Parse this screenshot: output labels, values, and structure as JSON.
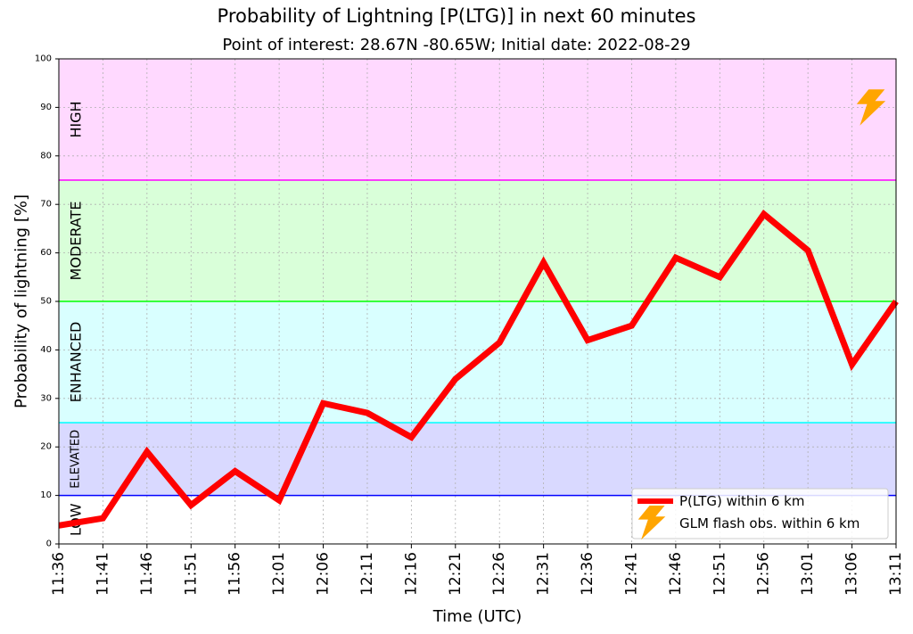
{
  "title": "Probability of Lightning [P(LTG)] in next 60 minutes",
  "subtitle": "Point of interest: 28.67N -80.65W; Initial date: 2022-08-29",
  "chart_data": {
    "type": "line",
    "title": "Probability of Lightning [P(LTG)] in next 60 minutes",
    "subtitle": "Point of interest: 28.67N -80.65W; Initial date: 2022-08-29",
    "xlabel": "Time (UTC)",
    "ylabel": "Probability of lightning [%]",
    "ylim": [
      0,
      100
    ],
    "yticks": [
      0,
      10,
      20,
      30,
      40,
      50,
      60,
      70,
      80,
      90,
      100
    ],
    "categories": [
      "11:36",
      "11:41",
      "11:46",
      "11:51",
      "11:56",
      "12:01",
      "12:06",
      "12:11",
      "12:16",
      "12:21",
      "12:26",
      "12:31",
      "12:36",
      "12:41",
      "12:46",
      "12:51",
      "12:56",
      "13:01",
      "13:06",
      "13:11"
    ],
    "series": [
      {
        "name": "P(LTG) within 6 km",
        "color": "#ff0000",
        "values": [
          3.8,
          5.3,
          19,
          8,
          15,
          9,
          29,
          27,
          22,
          34,
          41.5,
          58,
          42,
          45,
          59,
          55,
          68,
          60.5,
          37,
          50
        ]
      }
    ],
    "glm_flash_obs": {
      "name": "GLM flash obs. within 6 km",
      "color": "#ffa500",
      "icon": "lightning-bolt-icon",
      "points": [
        {
          "x": "13:11",
          "y": 90
        }
      ]
    },
    "zones": [
      {
        "label": "LOW",
        "from": 0,
        "to": 10,
        "fill": "#ffffff",
        "line": "#0000ff"
      },
      {
        "label": "ELEVATED",
        "from": 10,
        "to": 25,
        "fill": "#d9d9ff",
        "line": "#00ffff"
      },
      {
        "label": "ENHANCED",
        "from": 25,
        "to": 50,
        "fill": "#d9ffff",
        "line": "#00ff00"
      },
      {
        "label": "MODERATE",
        "from": 50,
        "to": 75,
        "fill": "#d9ffd9",
        "line": "#ff00ff"
      },
      {
        "label": "HIGH",
        "from": 75,
        "to": 100,
        "fill": "#ffd9ff",
        "line": null
      }
    ],
    "grid": true,
    "legend_position": "bottom-right"
  }
}
